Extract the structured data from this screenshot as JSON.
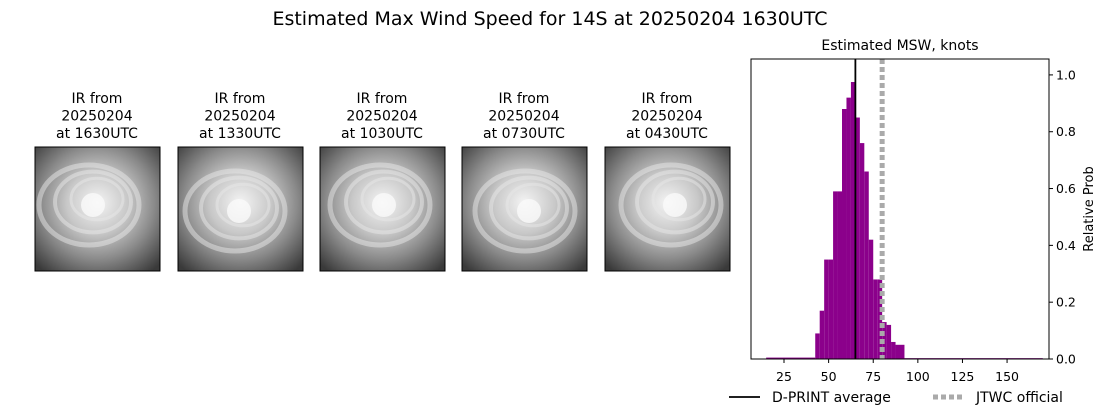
{
  "title": "Estimated Max Wind Speed for 14S at 20250204 1630UTC",
  "panels": [
    {
      "label": [
        "IR from",
        "20250204",
        "at 1630UTC"
      ]
    },
    {
      "label": [
        "IR from",
        "20250204",
        "at 1330UTC"
      ]
    },
    {
      "label": [
        "IR from",
        "20250204",
        "at 1030UTC"
      ]
    },
    {
      "label": [
        "IR from",
        "20250204",
        "at 0730UTC"
      ]
    },
    {
      "label": [
        "IR from",
        "20250204",
        "at 0430UTC"
      ]
    }
  ],
  "chart_data": {
    "type": "histogram",
    "title": "Estimated MSW, knots",
    "y_label": "Relative Prob",
    "color": "#8b008b",
    "bins": [
      15,
      42.5,
      45,
      47.5,
      50,
      52.5,
      55,
      57.5,
      60,
      62.5,
      65,
      67.5,
      70,
      72.5,
      75,
      77.5,
      80,
      82.5,
      85,
      87.5,
      90,
      92.5,
      170
    ],
    "counts": [
      0.005,
      0.09,
      0.17,
      0.35,
      0.35,
      0.59,
      0.59,
      0.88,
      0.92,
      0.975,
      0.85,
      0.76,
      0.66,
      0.42,
      0.28,
      0.28,
      0.13,
      0.12,
      0.06,
      0.05,
      0.05,
      0.003
    ],
    "xlim": [
      6.5,
      173.5
    ],
    "ylim": [
      0,
      1.056
    ],
    "xticks": [
      25,
      50,
      75,
      100,
      125,
      150
    ],
    "yticks": [
      {
        "value": 0,
        "label": "0.0"
      },
      0.2,
      0.4,
      0.6,
      0.8,
      {
        "value": 1,
        "label": "1.0"
      }
    ],
    "y_axis_side": "right",
    "lines": [
      {
        "name": "D-PRINT average",
        "x": 65,
        "color": "#000000",
        "style": "solid"
      },
      {
        "name": "JTWC official",
        "x": 80,
        "color": "#aaaaaa",
        "style": "dotted"
      }
    ]
  }
}
